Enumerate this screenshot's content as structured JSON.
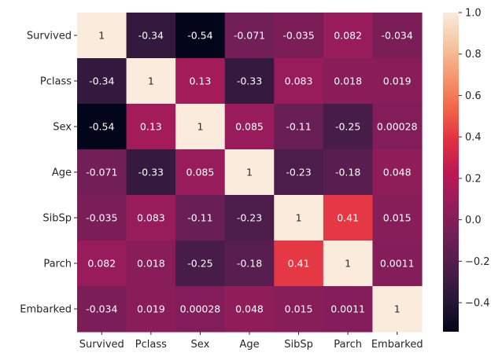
{
  "chart_data": {
    "type": "heatmap",
    "title": "",
    "xlabel": "",
    "ylabel": "",
    "x_labels": [
      "Survived",
      "Pclass",
      "Sex",
      "Age",
      "SibSp",
      "Parch",
      "Embarked"
    ],
    "y_labels": [
      "Survived",
      "Pclass",
      "Sex",
      "Age",
      "SibSp",
      "Parch",
      "Embarked"
    ],
    "values": [
      [
        1,
        -0.34,
        -0.54,
        -0.071,
        -0.035,
        0.082,
        -0.034
      ],
      [
        -0.34,
        1,
        0.13,
        -0.33,
        0.083,
        0.018,
        0.019
      ],
      [
        -0.54,
        0.13,
        1,
        0.085,
        -0.11,
        -0.25,
        0.00028
      ],
      [
        -0.071,
        -0.33,
        0.085,
        1,
        -0.23,
        -0.18,
        0.048
      ],
      [
        -0.035,
        0.083,
        -0.11,
        -0.23,
        1,
        0.41,
        0.015
      ],
      [
        0.082,
        0.018,
        -0.25,
        -0.18,
        0.41,
        1,
        0.0011
      ],
      [
        -0.034,
        0.019,
        0.00028,
        0.048,
        0.015,
        0.0011,
        1
      ]
    ],
    "annotations": [
      [
        "1",
        "-0.34",
        "-0.54",
        "-0.071",
        "-0.035",
        "0.082",
        "-0.034"
      ],
      [
        "-0.34",
        "1",
        "0.13",
        "-0.33",
        "0.083",
        "0.018",
        "0.019"
      ],
      [
        "-0.54",
        "0.13",
        "1",
        "0.085",
        "-0.11",
        "-0.25",
        "0.00028"
      ],
      [
        "-0.071",
        "-0.33",
        "0.085",
        "1",
        "-0.23",
        "-0.18",
        "0.048"
      ],
      [
        "-0.035",
        "0.083",
        "-0.11",
        "-0.23",
        "1",
        "0.41",
        "0.015"
      ],
      [
        "0.082",
        "0.018",
        "-0.25",
        "-0.18",
        "0.41",
        "1",
        "0.0011"
      ],
      [
        "-0.034",
        "0.019",
        "0.00028",
        "0.048",
        "0.015",
        "0.0011",
        "1"
      ]
    ],
    "colormap": "rocket",
    "vmin": -0.54,
    "vmax": 1,
    "colorbar_ticks": [
      1.0,
      0.8,
      0.6,
      0.4,
      0.2,
      0.0,
      -0.2,
      -0.4
    ],
    "colorbar_tick_labels": [
      "1.0",
      "0.8",
      "0.6",
      "0.4",
      "0.2",
      "0.0",
      "−0.2",
      "−0.4"
    ],
    "grid": false,
    "colorbar_position": "right"
  }
}
